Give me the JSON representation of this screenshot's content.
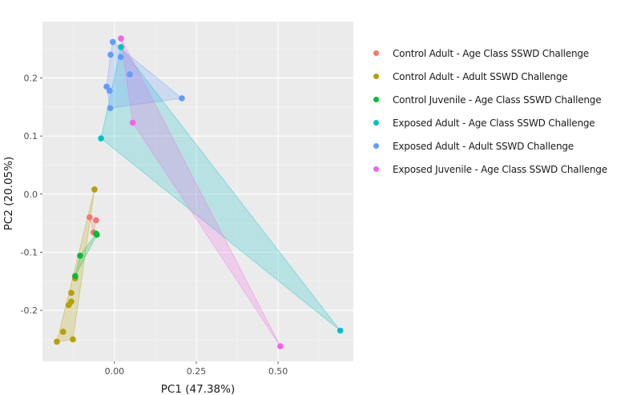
{
  "chart_data": {
    "type": "scatter",
    "title": "",
    "xlabel": "PC1 (47.38%)",
    "ylabel": "PC2 (20.05%)",
    "xlim": [
      -0.22,
      0.73
    ],
    "ylim": [
      -0.288,
      0.297
    ],
    "xticks": [
      0.0,
      0.25,
      0.5
    ],
    "xtick_labels": [
      "0.00",
      "0.25",
      "0.50"
    ],
    "yticks": [
      -0.2,
      -0.1,
      0.0,
      0.1,
      0.2
    ],
    "ytick_labels": [
      "-0.2",
      "-0.1",
      "0.0",
      "0.1",
      "0.2"
    ],
    "grid": true,
    "legend_position": "right",
    "hulls": true,
    "series": [
      {
        "name": "Control Adult - Age Class SSWD Challenge",
        "color": "#F8766D",
        "points": [
          [
            -0.076,
            -0.04
          ],
          [
            -0.056,
            -0.045
          ],
          [
            -0.064,
            -0.066
          ]
        ]
      },
      {
        "name": "Control Adult - Adult SSWD Challenge",
        "color": "#B79F00",
        "points": [
          [
            -0.061,
            0.008
          ],
          [
            -0.12,
            -0.145
          ],
          [
            -0.132,
            -0.17
          ],
          [
            -0.132,
            -0.185
          ],
          [
            -0.14,
            -0.191
          ],
          [
            -0.157,
            -0.237
          ],
          [
            -0.176,
            -0.254
          ],
          [
            -0.127,
            -0.25
          ]
        ]
      },
      {
        "name": "Control Juvenile - Age Class SSWD Challenge",
        "color": "#00BA38",
        "points": [
          [
            -0.12,
            -0.141
          ],
          [
            -0.105,
            -0.106
          ],
          [
            -0.054,
            -0.07
          ],
          [
            -0.056,
            -0.068
          ]
        ]
      },
      {
        "name": "Exposed Adult - Age Class SSWD Challenge",
        "color": "#00BFC4",
        "points": [
          [
            0.02,
            0.253
          ],
          [
            -0.041,
            0.096
          ],
          [
            0.69,
            -0.235
          ]
        ]
      },
      {
        "name": "Exposed Adult - Adult SSWD Challenge",
        "color": "#619CFF",
        "points": [
          [
            -0.005,
            0.262
          ],
          [
            -0.012,
            0.24
          ],
          [
            0.019,
            0.236
          ],
          [
            0.047,
            0.206
          ],
          [
            -0.024,
            0.185
          ],
          [
            -0.015,
            0.178
          ],
          [
            -0.013,
            0.148
          ],
          [
            0.206,
            0.165
          ]
        ]
      },
      {
        "name": "Exposed Juvenile - Age Class SSWD Challenge",
        "color": "#F564E3",
        "points": [
          [
            0.02,
            0.268
          ],
          [
            0.056,
            0.123
          ],
          [
            0.507,
            -0.262
          ]
        ]
      }
    ]
  }
}
